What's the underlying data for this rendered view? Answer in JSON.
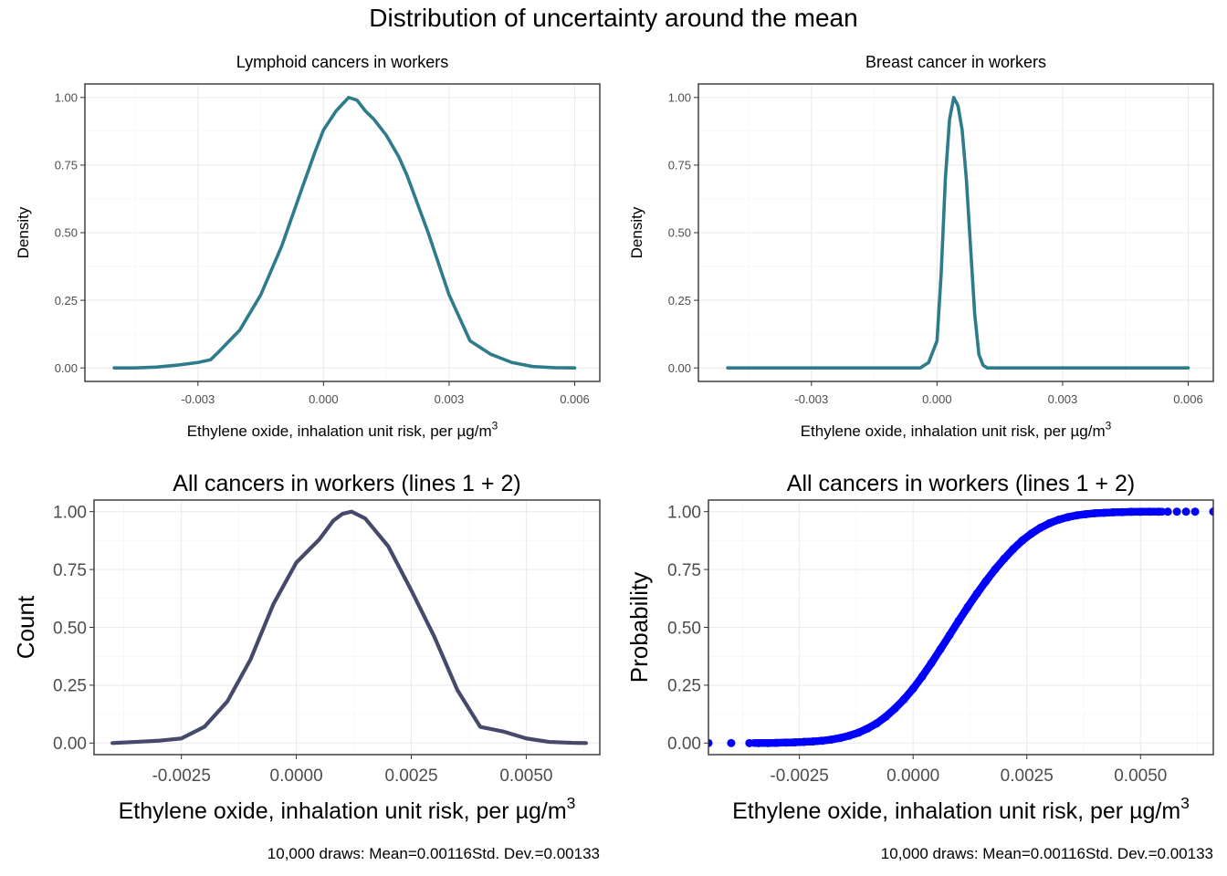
{
  "title": "Distribution of uncertainty around the mean",
  "chart_data": [
    {
      "type": "line",
      "title": "Lymphoid cancers in workers",
      "xlabel": "Ethylene oxide, inhalation unit risk, per µg/m3",
      "ylabel": "Density",
      "xlim": [
        -0.0057,
        0.0066
      ],
      "ylim": [
        -0.05,
        1.05
      ],
      "x_ticks": [
        -0.003,
        0.0,
        0.003,
        0.006
      ],
      "x_tick_labels": [
        "-0.003",
        "0.000",
        "0.003",
        "0.006"
      ],
      "y_ticks": [
        0,
        0.25,
        0.5,
        0.75,
        1
      ],
      "y_tick_labels": [
        "0.00",
        "0.25",
        "0.50",
        "0.75",
        "1.00"
      ],
      "grid": true,
      "series": [
        {
          "color": "#2e7b8c",
          "x": [
            -0.005,
            -0.0045,
            -0.004,
            -0.0035,
            -0.003,
            -0.0027,
            -0.0025,
            -0.002,
            -0.0015,
            -0.001,
            -0.0005,
            -0.0002,
            0.0,
            0.0003,
            0.0006,
            0.0008,
            0.001,
            0.0012,
            0.0015,
            0.0018,
            0.002,
            0.0025,
            0.003,
            0.0035,
            0.004,
            0.0045,
            0.005,
            0.0055,
            0.006
          ],
          "y": [
            0.0,
            0.0,
            0.003,
            0.01,
            0.02,
            0.03,
            0.06,
            0.14,
            0.27,
            0.45,
            0.67,
            0.8,
            0.88,
            0.95,
            1.0,
            0.99,
            0.95,
            0.92,
            0.86,
            0.78,
            0.71,
            0.5,
            0.27,
            0.1,
            0.05,
            0.02,
            0.005,
            0.001,
            0.0
          ]
        }
      ]
    },
    {
      "type": "line",
      "title": "Breast cancer in workers",
      "xlabel": "Ethylene oxide, inhalation unit risk, per µg/m3",
      "ylabel": "Density",
      "xlim": [
        -0.0057,
        0.0066
      ],
      "ylim": [
        -0.05,
        1.05
      ],
      "x_ticks": [
        -0.003,
        0.0,
        0.003,
        0.006
      ],
      "x_tick_labels": [
        "-0.003",
        "0.000",
        "0.003",
        "0.006"
      ],
      "y_ticks": [
        0,
        0.25,
        0.5,
        0.75,
        1
      ],
      "y_tick_labels": [
        "0.00",
        "0.25",
        "0.50",
        "0.75",
        "1.00"
      ],
      "grid": true,
      "series": [
        {
          "color": "#2e7b8c",
          "x": [
            -0.005,
            -0.001,
            -0.0004,
            -0.0002,
            0.0,
            0.0001,
            0.0002,
            0.0003,
            0.0004,
            0.0005,
            0.0006,
            0.0007,
            0.0008,
            0.0009,
            0.001,
            0.0011,
            0.0012,
            0.0014,
            0.006
          ],
          "y": [
            0.0,
            0.0,
            0.0,
            0.02,
            0.1,
            0.35,
            0.7,
            0.92,
            1.0,
            0.97,
            0.88,
            0.7,
            0.45,
            0.2,
            0.05,
            0.01,
            0.0,
            0.0,
            0.0
          ]
        }
      ]
    },
    {
      "type": "line",
      "title": "All cancers in workers (lines 1 + 2)",
      "xlabel": "Ethylene oxide, inhalation unit risk, per µg/m3",
      "ylabel": "Count",
      "caption": "10,000 draws: Mean=0.00116Std. Dev.=0.00133",
      "xlim": [
        -0.0044,
        0.0066
      ],
      "ylim": [
        -0.05,
        1.05
      ],
      "x_ticks": [
        -0.0025,
        0.0,
        0.0025,
        0.005
      ],
      "x_tick_labels": [
        "-0.0025",
        "0.0000",
        "0.0025",
        "0.0050"
      ],
      "y_ticks": [
        0,
        0.25,
        0.5,
        0.75,
        1
      ],
      "y_tick_labels": [
        "0.00",
        "0.25",
        "0.50",
        "0.75",
        "1.00"
      ],
      "grid": true,
      "series": [
        {
          "color": "#454a6a",
          "x": [
            -0.004,
            -0.0035,
            -0.003,
            -0.0025,
            -0.002,
            -0.0015,
            -0.001,
            -0.0005,
            0.0,
            0.0005,
            0.0008,
            0.001,
            0.0012,
            0.0015,
            0.002,
            0.0025,
            0.003,
            0.0035,
            0.004,
            0.0045,
            0.005,
            0.0055,
            0.006,
            0.0063
          ],
          "y": [
            0.0,
            0.005,
            0.01,
            0.02,
            0.07,
            0.18,
            0.36,
            0.6,
            0.78,
            0.88,
            0.96,
            0.99,
            1.0,
            0.97,
            0.85,
            0.66,
            0.46,
            0.23,
            0.07,
            0.05,
            0.02,
            0.005,
            0.001,
            0.0
          ]
        }
      ]
    },
    {
      "type": "scatter",
      "title": "All cancers in workers (lines 1 + 2)",
      "xlabel": "Ethylene oxide, inhalation unit risk, per µg/m3",
      "ylabel": "Probability",
      "caption": "10,000 draws: Mean=0.00116Std. Dev.=0.00133",
      "xlim": [
        -0.0045,
        0.0066
      ],
      "ylim": [
        -0.05,
        1.05
      ],
      "x_ticks": [
        -0.0025,
        0.0,
        0.0025,
        0.005
      ],
      "x_tick_labels": [
        "-0.0025",
        "0.0000",
        "0.0025",
        "0.0050"
      ],
      "y_ticks": [
        0,
        0.25,
        0.5,
        0.75,
        1
      ],
      "y_tick_labels": [
        "0.00",
        "0.25",
        "0.50",
        "0.75",
        "1.00"
      ],
      "grid": true,
      "series": [
        {
          "color": "#0000ff",
          "x": [
            -0.0045,
            -0.004,
            -0.0036,
            -0.0034,
            -0.0032,
            -0.003,
            -0.0028,
            -0.0026,
            -0.0024,
            -0.0022,
            -0.002,
            -0.0018,
            -0.0016,
            -0.0014,
            -0.0012,
            -0.001,
            -0.0008,
            -0.0006,
            -0.0004,
            -0.0002,
            0.0,
            0.0002,
            0.0004,
            0.0006,
            0.0008,
            0.001,
            0.0012,
            0.0014,
            0.0016,
            0.0018,
            0.002,
            0.0022,
            0.0024,
            0.0026,
            0.0028,
            0.003,
            0.0032,
            0.0034,
            0.0036,
            0.0038,
            0.004,
            0.0042,
            0.0044,
            0.0046,
            0.0048,
            0.005,
            0.0052,
            0.0054,
            0.0056,
            0.0058,
            0.006,
            0.0062,
            0.0066
          ],
          "y": [
            0.0,
            0.0,
            0.0,
            0.0,
            0.0,
            0.001,
            0.002,
            0.003,
            0.005,
            0.007,
            0.01,
            0.015,
            0.022,
            0.032,
            0.045,
            0.063,
            0.085,
            0.114,
            0.149,
            0.189,
            0.235,
            0.288,
            0.345,
            0.405,
            0.466,
            0.528,
            0.588,
            0.645,
            0.699,
            0.75,
            0.796,
            0.838,
            0.875,
            0.905,
            0.93,
            0.95,
            0.965,
            0.976,
            0.984,
            0.989,
            0.993,
            0.995,
            0.997,
            0.998,
            0.999,
            0.9993,
            0.9995,
            0.9996,
            0.9997,
            0.9998,
            0.9999,
            0.99995,
            1.0
          ]
        }
      ]
    }
  ]
}
